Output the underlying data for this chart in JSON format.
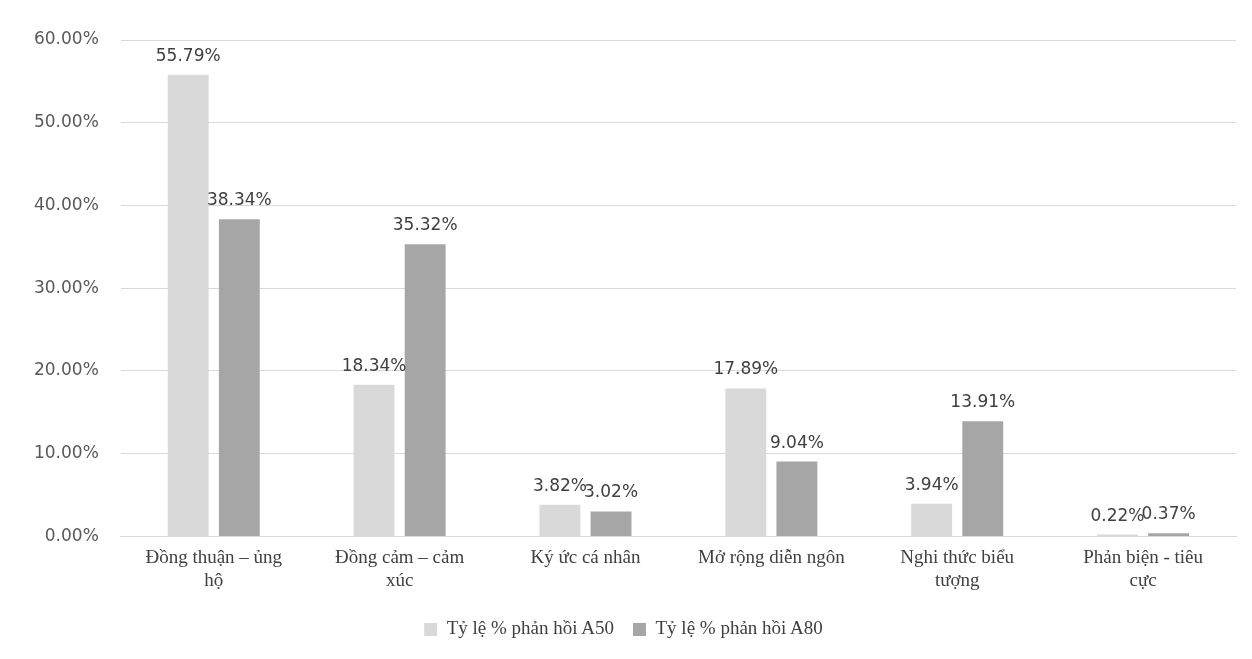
{
  "chart_data": {
    "type": "bar",
    "categories": [
      "Đồng thuận – ủng hộ",
      "Đồng cảm – cảm xúc",
      "Ký ức cá nhân",
      "Mở rộng diễn ngôn",
      "Nghi thức biểu tượng",
      "Phản biện - tiêu cực"
    ],
    "series": [
      {
        "name": "Tỷ lệ % phản hồi A50",
        "color": "#d9d9d9",
        "values": [
          55.79,
          18.34,
          3.82,
          17.89,
          3.94,
          0.22
        ],
        "value_labels": [
          "55.79%",
          "18.34%",
          "3.82%",
          "17.89%",
          "3.94%",
          "0.22%"
        ]
      },
      {
        "name": "Tỷ lệ % phản hồi A80",
        "color": "#a6a6a6",
        "values": [
          38.34,
          35.32,
          3.02,
          9.04,
          13.91,
          0.37
        ],
        "value_labels": [
          "38.34%",
          "35.32%",
          "3.02%",
          "9.04%",
          "13.91%",
          "0.37%"
        ]
      }
    ],
    "ylim": [
      0,
      60
    ],
    "yticks": [
      {
        "value": 0,
        "label": "0.00%"
      },
      {
        "value": 10,
        "label": "10.00%"
      },
      {
        "value": 20,
        "label": "20.00%"
      },
      {
        "value": 30,
        "label": "30.00%"
      },
      {
        "value": 40,
        "label": "40.00%"
      },
      {
        "value": 50,
        "label": "50.00%"
      },
      {
        "value": 60,
        "label": "60.00%"
      }
    ],
    "grid": "y",
    "legend": "bottom"
  }
}
